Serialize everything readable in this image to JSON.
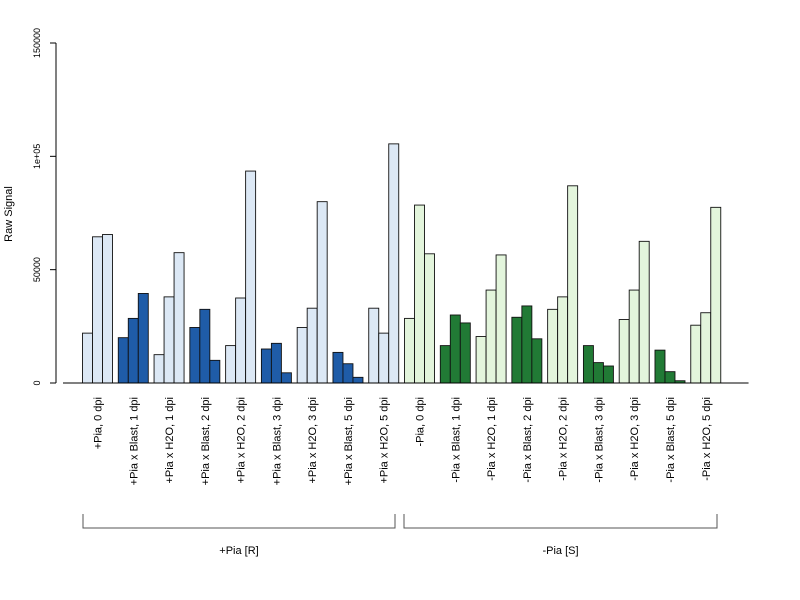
{
  "chart_data": {
    "type": "bar",
    "ylabel": "Raw Signal",
    "xlabel": "",
    "title": "",
    "ylim": [
      0,
      150000
    ],
    "yticks": [
      0,
      50000,
      100000,
      150000
    ],
    "ytick_labels": [
      "0",
      "50000",
      "1e+05",
      "150000"
    ],
    "colors": {
      "pia_light": "#dce8f5",
      "pia_dark": "#1f5ca8",
      "nopia_light": "#e3f5dc",
      "nopia_dark": "#217a35",
      "bar_edge": "#111111",
      "axis": "#000000"
    },
    "categories": [
      "+Pia, 0 dpi",
      "+Pia x Blast, 1 dpi",
      "+Pia x H2O, 1 dpi",
      "+Pia x Blast, 2 dpi",
      "+Pia x H2O, 2 dpi",
      "+Pia x Blast, 3 dpi",
      "+Pia x H2O, 3 dpi",
      "+Pia x Blast, 5 dpi",
      "+Pia x H2O, 5 dpi",
      "-Pia, 0 dpi",
      "-Pia x Blast, 1 dpi",
      "-Pia x H2O, 1 dpi",
      "-Pia x Blast, 2 dpi",
      "-Pia x H2O, 2 dpi",
      "-Pia x Blast, 3 dpi",
      "-Pia x H2O, 3 dpi",
      "-Pia x Blast, 5 dpi",
      "-Pia x H2O, 5 dpi"
    ],
    "tone": [
      "light",
      "dark",
      "light",
      "dark",
      "light",
      "dark",
      "light",
      "dark",
      "light",
      "light",
      "dark",
      "light",
      "dark",
      "light",
      "dark",
      "light",
      "dark",
      "light"
    ],
    "palette": [
      "pia",
      "pia",
      "pia",
      "pia",
      "pia",
      "pia",
      "pia",
      "pia",
      "pia",
      "nopia",
      "nopia",
      "nopia",
      "nopia",
      "nopia",
      "nopia",
      "nopia",
      "nopia",
      "nopia"
    ],
    "replicate_values": [
      [
        22000,
        64500,
        65500
      ],
      [
        20000,
        28500,
        39500
      ],
      [
        12500,
        38000,
        57500
      ],
      [
        24500,
        32500,
        10000
      ],
      [
        16500,
        37500,
        93500
      ],
      [
        15000,
        17500,
        4500
      ],
      [
        24500,
        33000,
        80000
      ],
      [
        13500,
        8500,
        2500
      ],
      [
        33000,
        22000,
        105500
      ],
      [
        28500,
        78500,
        57000
      ],
      [
        16500,
        30000,
        26500
      ],
      [
        20500,
        41000,
        56500
      ],
      [
        29000,
        34000,
        19500
      ],
      [
        32500,
        38000,
        87000
      ],
      [
        16500,
        9000,
        7500
      ],
      [
        28000,
        41000,
        62500
      ],
      [
        14500,
        5000,
        1000
      ],
      [
        25500,
        31000,
        77500
      ]
    ],
    "groups": [
      {
        "label": "+Pia [R]",
        "categories": [
          0,
          8
        ]
      },
      {
        "label": "-Pia [S]",
        "categories": [
          9,
          17
        ]
      }
    ]
  }
}
